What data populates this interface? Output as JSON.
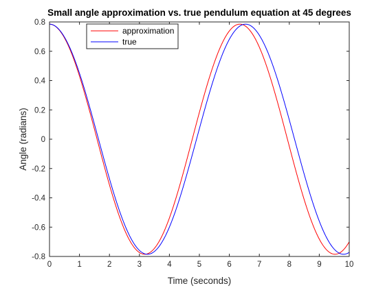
{
  "chart_data": {
    "type": "line",
    "title": "Small angle approximation vs. true pendulum equation at 45 degrees",
    "xlabel": "Time (seconds)",
    "ylabel": "Angle (radians)",
    "xlim": [
      0,
      10
    ],
    "ylim": [
      -0.8,
      0.8
    ],
    "x_ticks": [
      0,
      1,
      2,
      3,
      4,
      5,
      6,
      7,
      8,
      9,
      10
    ],
    "x_tick_labels": [
      "0",
      "1",
      "2",
      "3",
      "4",
      "5",
      "6",
      "7",
      "8",
      "9",
      "10"
    ],
    "y_ticks": [
      -0.8,
      -0.6,
      -0.4,
      -0.2,
      0,
      0.2,
      0.4,
      0.6,
      0.8
    ],
    "y_tick_labels": [
      "-0.8",
      "-0.6",
      "-0.4",
      "-0.2",
      "0",
      "0.2",
      "0.4",
      "0.6",
      "0.8"
    ],
    "grid": false,
    "legend_position": "top-left",
    "series": [
      {
        "name": "approximation",
        "color": "#ff0000",
        "amplitude": 0.785,
        "period": 6.35,
        "x": [
          0,
          0.5,
          1,
          1.5,
          2,
          2.5,
          3,
          3.175,
          3.5,
          4,
          4.5,
          5,
          5.5,
          6,
          6.35,
          6.5,
          7,
          7.5,
          8,
          8.5,
          9,
          9.525,
          10
        ],
        "values": [
          0.785,
          0.688,
          0.428,
          0.07,
          -0.3,
          -0.602,
          -0.772,
          -0.785,
          -0.745,
          -0.547,
          -0.218,
          0.16,
          0.508,
          0.743,
          0.785,
          0.776,
          0.647,
          0.36,
          -0.015,
          -0.383,
          -0.661,
          -0.785,
          -0.67
        ]
      },
      {
        "name": "true",
        "color": "#0000ff",
        "amplitude": 0.785,
        "period": 6.54,
        "x": [
          0,
          0.5,
          1,
          1.5,
          2,
          2.5,
          3,
          3.27,
          3.5,
          4,
          4.5,
          5,
          5.5,
          6,
          6.54,
          7,
          7.5,
          8,
          8.5,
          9,
          9.5,
          9.81,
          10
        ],
        "values": [
          0.785,
          0.691,
          0.439,
          0.092,
          -0.272,
          -0.578,
          -0.761,
          -0.785,
          -0.763,
          -0.596,
          -0.304,
          0.053,
          0.405,
          0.677,
          0.785,
          0.709,
          0.47,
          0.128,
          -0.237,
          -0.553,
          -0.751,
          -0.785,
          -0.767
        ]
      }
    ]
  }
}
